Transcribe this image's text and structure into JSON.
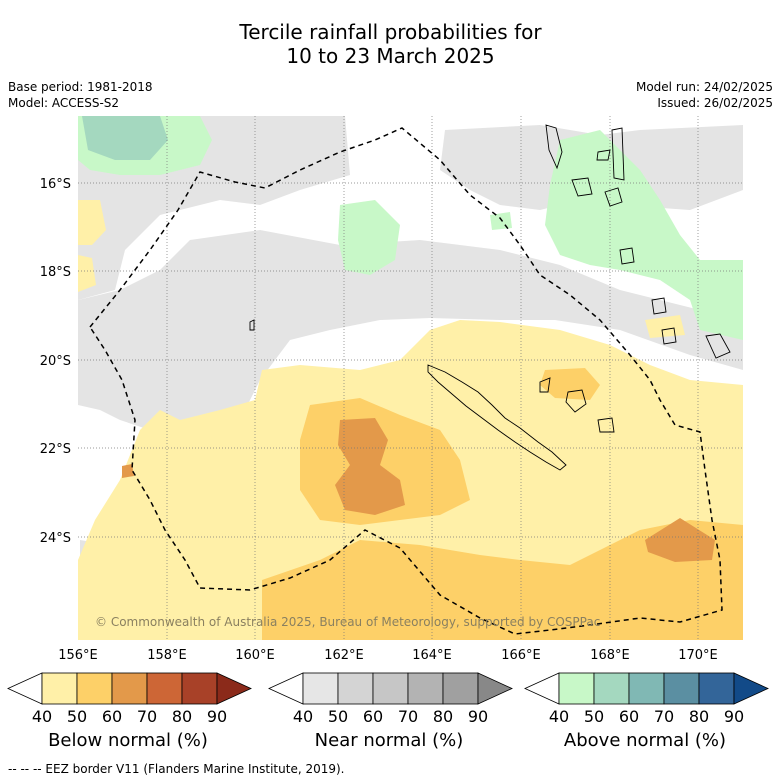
{
  "title": {
    "line1": "Tercile rainfall probabilities for",
    "line2": "10 to 23 March 2025"
  },
  "meta": {
    "base_period": "Base period: 1981-2018",
    "model": "Model: ACCESS-S2",
    "model_run": "Model run: 24/02/2025",
    "issued": "Issued: 26/02/2025"
  },
  "map": {
    "lon_ticks": [
      "156°E",
      "158°E",
      "160°E",
      "162°E",
      "164°E",
      "166°E",
      "168°E",
      "170°E"
    ],
    "lat_ticks": [
      "16°S",
      "18°S",
      "20°S",
      "22°S",
      "24°S"
    ],
    "copyright": "© Commonwealth of Australia 2025, Bureau of Meteorology, supported by COSPPac"
  },
  "colorbars": [
    {
      "name": "below",
      "label": "Below normal (%)",
      "ticks": [
        "40",
        "50",
        "60",
        "70",
        "80",
        "90"
      ],
      "colors": [
        "#ffffff",
        "#fff0a8",
        "#fdd068",
        "#e3994a",
        "#cd6636",
        "#a84128",
        "#8b2a1a"
      ]
    },
    {
      "name": "near",
      "label": "Near normal (%)",
      "ticks": [
        "40",
        "50",
        "60",
        "70",
        "80",
        "90"
      ],
      "colors": [
        "#ffffff",
        "#e6e6e6",
        "#d4d4d4",
        "#c6c6c6",
        "#b3b3b3",
        "#a0a0a0",
        "#888888"
      ]
    },
    {
      "name": "above",
      "label": "Above normal (%)",
      "ticks": [
        "40",
        "50",
        "60",
        "70",
        "80",
        "90"
      ],
      "colors": [
        "#ffffff",
        "#c8f8c8",
        "#a4d8bf",
        "#80b8b4",
        "#5b8fa2",
        "#336599",
        "#124a88"
      ]
    }
  ],
  "footer": "--  --  -- EEZ border V11 (Flanders Marine Institute, 2019)."
}
